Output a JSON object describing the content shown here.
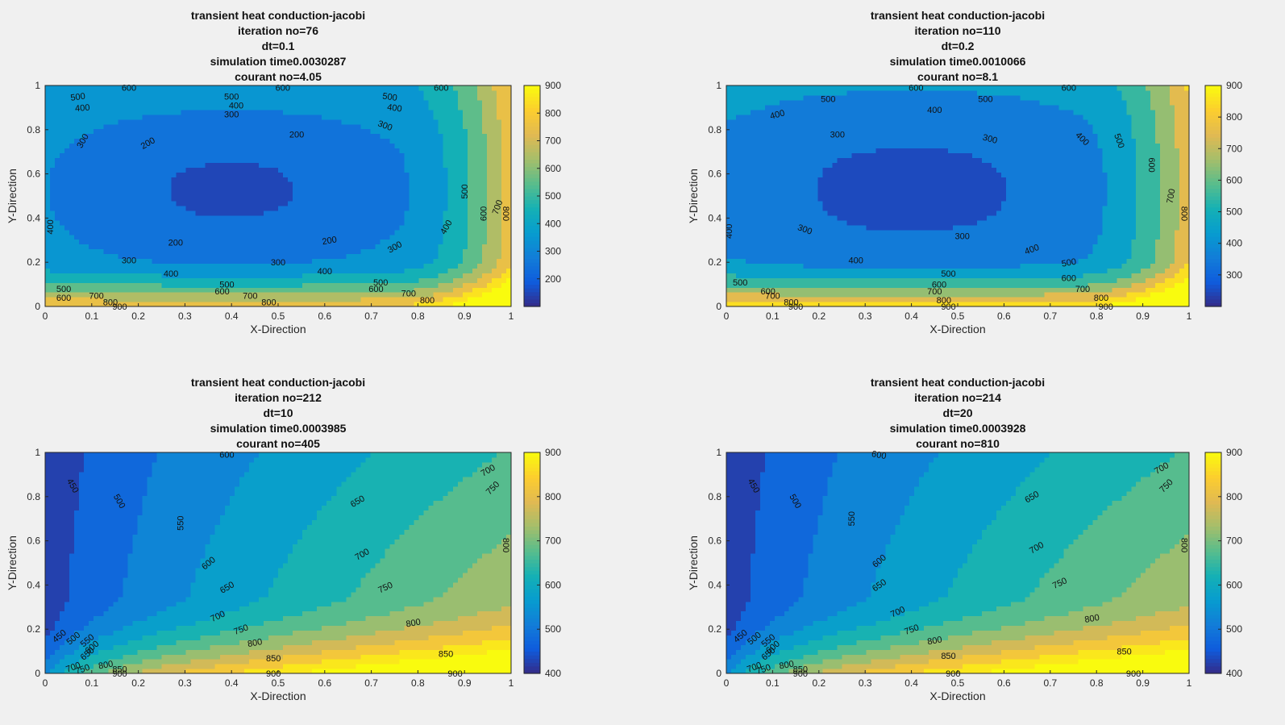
{
  "chart_data": [
    {
      "type": "contour",
      "title_lines": [
        "transient heat conduction-jacobi",
        "iteration no=76",
        "dt=0.1",
        "simulation time0.0030287",
        "courant no=4.05"
      ],
      "xlabel": "X-Direction",
      "ylabel": "Y-Direction",
      "xlim": [
        0,
        1
      ],
      "ylim": [
        0,
        1
      ],
      "xticks": [
        "0",
        "0.1",
        "0.2",
        "0.3",
        "0.4",
        "0.5",
        "0.6",
        "0.7",
        "0.8",
        "0.9",
        "1"
      ],
      "yticks": [
        "0",
        "0.2",
        "0.4",
        "0.6",
        "0.8",
        "1"
      ],
      "colorbar": {
        "ticks": [
          "200",
          "300",
          "400",
          "500",
          "600",
          "700",
          "800",
          "900"
        ],
        "tick_values": [
          200,
          300,
          400,
          500,
          600,
          700,
          800,
          900
        ],
        "range": [
          100,
          900
        ],
        "colormap": "parula"
      },
      "contour_levels": [
        200,
        300,
        400,
        500,
        600,
        700,
        800,
        900
      ],
      "contour_labels": [
        {
          "text": "600",
          "x": 0.18,
          "y": 0.99,
          "rot": 0
        },
        {
          "text": "600",
          "x": 0.51,
          "y": 0.99,
          "rot": 0
        },
        {
          "text": "600",
          "x": 0.85,
          "y": 0.99,
          "rot": 0
        },
        {
          "text": "500",
          "x": 0.07,
          "y": 0.95,
          "rot": -8
        },
        {
          "text": "500",
          "x": 0.4,
          "y": 0.95,
          "rot": 0
        },
        {
          "text": "500",
          "x": 0.74,
          "y": 0.95,
          "rot": 8
        },
        {
          "text": "400",
          "x": 0.08,
          "y": 0.9,
          "rot": -5
        },
        {
          "text": "400",
          "x": 0.41,
          "y": 0.91,
          "rot": 0
        },
        {
          "text": "400",
          "x": 0.75,
          "y": 0.9,
          "rot": 8
        },
        {
          "text": "300",
          "x": 0.4,
          "y": 0.87,
          "rot": 0
        },
        {
          "text": "300",
          "x": 0.73,
          "y": 0.82,
          "rot": 20
        },
        {
          "text": "300",
          "x": 0.08,
          "y": 0.75,
          "rot": -60
        },
        {
          "text": "200",
          "x": 0.22,
          "y": 0.74,
          "rot": -30
        },
        {
          "text": "200",
          "x": 0.54,
          "y": 0.78,
          "rot": 0
        },
        {
          "text": "500",
          "x": 0.9,
          "y": 0.52,
          "rot": -90
        },
        {
          "text": "600",
          "x": 0.94,
          "y": 0.42,
          "rot": -90
        },
        {
          "text": "700",
          "x": 0.97,
          "y": 0.45,
          "rot": -70
        },
        {
          "text": "800",
          "x": 0.99,
          "y": 0.42,
          "rot": 90
        },
        {
          "text": "400",
          "x": 0.01,
          "y": 0.36,
          "rot": -90
        },
        {
          "text": "400",
          "x": 0.86,
          "y": 0.36,
          "rot": -60
        },
        {
          "text": "200",
          "x": 0.28,
          "y": 0.29,
          "rot": 0
        },
        {
          "text": "200",
          "x": 0.61,
          "y": 0.3,
          "rot": -10
        },
        {
          "text": "300",
          "x": 0.75,
          "y": 0.27,
          "rot": -30
        },
        {
          "text": "300",
          "x": 0.18,
          "y": 0.21,
          "rot": 0
        },
        {
          "text": "300",
          "x": 0.5,
          "y": 0.2,
          "rot": 0
        },
        {
          "text": "400",
          "x": 0.27,
          "y": 0.15,
          "rot": 0
        },
        {
          "text": "400",
          "x": 0.6,
          "y": 0.16,
          "rot": 0
        },
        {
          "text": "500",
          "x": 0.72,
          "y": 0.11,
          "rot": 0
        },
        {
          "text": "600",
          "x": 0.71,
          "y": 0.08,
          "rot": 0
        },
        {
          "text": "500",
          "x": 0.39,
          "y": 0.1,
          "rot": 0
        },
        {
          "text": "600",
          "x": 0.38,
          "y": 0.07,
          "rot": 0
        },
        {
          "text": "700",
          "x": 0.44,
          "y": 0.05,
          "rot": 0
        },
        {
          "text": "700",
          "x": 0.78,
          "y": 0.06,
          "rot": 0
        },
        {
          "text": "800",
          "x": 0.48,
          "y": 0.02,
          "rot": 0
        },
        {
          "text": "800",
          "x": 0.82,
          "y": 0.03,
          "rot": 0
        },
        {
          "text": "900",
          "x": 0.16,
          "y": 0.0,
          "rot": 0
        },
        {
          "text": "700",
          "x": 0.11,
          "y": 0.05,
          "rot": 0
        },
        {
          "text": "800",
          "x": 0.14,
          "y": 0.02,
          "rot": 0
        },
        {
          "text": "500",
          "x": 0.04,
          "y": 0.08,
          "rot": 0
        },
        {
          "text": "600",
          "x": 0.04,
          "y": 0.04,
          "rot": 0
        }
      ]
    },
    {
      "type": "contour",
      "title_lines": [
        "transient heat conduction-jacobi",
        "iteration no=110",
        "dt=0.2",
        "simulation time0.0010066",
        "courant no=8.1"
      ],
      "xlabel": "X-Direction",
      "ylabel": "Y-Direction",
      "xlim": [
        0,
        1
      ],
      "ylim": [
        0,
        1
      ],
      "xticks": [
        "0",
        "0.1",
        "0.2",
        "0.3",
        "0.4",
        "0.5",
        "0.6",
        "0.7",
        "0.8",
        "0.9",
        "1"
      ],
      "yticks": [
        "0",
        "0.2",
        "0.4",
        "0.6",
        "0.8",
        "1"
      ],
      "colorbar": {
        "ticks": [
          "300",
          "400",
          "500",
          "600",
          "700",
          "800",
          "900"
        ],
        "tick_values": [
          300,
          400,
          500,
          600,
          700,
          800,
          900
        ],
        "range": [
          200,
          900
        ],
        "colormap": "parula"
      },
      "contour_levels": [
        300,
        400,
        500,
        600,
        700,
        800,
        900
      ],
      "contour_labels": [
        {
          "text": "600",
          "x": 0.41,
          "y": 0.99,
          "rot": 0
        },
        {
          "text": "600",
          "x": 0.74,
          "y": 0.99,
          "rot": 0
        },
        {
          "text": "500",
          "x": 0.22,
          "y": 0.94,
          "rot": 0
        },
        {
          "text": "500",
          "x": 0.56,
          "y": 0.94,
          "rot": 0
        },
        {
          "text": "400",
          "x": 0.11,
          "y": 0.87,
          "rot": -15
        },
        {
          "text": "400",
          "x": 0.45,
          "y": 0.89,
          "rot": 0
        },
        {
          "text": "300",
          "x": 0.24,
          "y": 0.78,
          "rot": 0
        },
        {
          "text": "300",
          "x": 0.57,
          "y": 0.76,
          "rot": 15
        },
        {
          "text": "400",
          "x": 0.77,
          "y": 0.76,
          "rot": 45
        },
        {
          "text": "500",
          "x": 0.85,
          "y": 0.75,
          "rot": 70
        },
        {
          "text": "600",
          "x": 0.92,
          "y": 0.64,
          "rot": 90
        },
        {
          "text": "700",
          "x": 0.96,
          "y": 0.5,
          "rot": -80
        },
        {
          "text": "800",
          "x": 0.99,
          "y": 0.42,
          "rot": 90
        },
        {
          "text": "400",
          "x": 0.005,
          "y": 0.34,
          "rot": -90
        },
        {
          "text": "300",
          "x": 0.17,
          "y": 0.35,
          "rot": 20
        },
        {
          "text": "300",
          "x": 0.51,
          "y": 0.32,
          "rot": 0
        },
        {
          "text": "400",
          "x": 0.66,
          "y": 0.26,
          "rot": -20
        },
        {
          "text": "400",
          "x": 0.28,
          "y": 0.21,
          "rot": 0
        },
        {
          "text": "500",
          "x": 0.74,
          "y": 0.2,
          "rot": -10
        },
        {
          "text": "500",
          "x": 0.48,
          "y": 0.15,
          "rot": 0
        },
        {
          "text": "600",
          "x": 0.74,
          "y": 0.13,
          "rot": 0
        },
        {
          "text": "600",
          "x": 0.46,
          "y": 0.1,
          "rot": 0
        },
        {
          "text": "700",
          "x": 0.77,
          "y": 0.08,
          "rot": 0
        },
        {
          "text": "700",
          "x": 0.45,
          "y": 0.07,
          "rot": 0
        },
        {
          "text": "800",
          "x": 0.81,
          "y": 0.04,
          "rot": 0
        },
        {
          "text": "800",
          "x": 0.47,
          "y": 0.03,
          "rot": 0
        },
        {
          "text": "900",
          "x": 0.82,
          "y": 0.0,
          "rot": 0
        },
        {
          "text": "900",
          "x": 0.48,
          "y": 0.0,
          "rot": 0
        },
        {
          "text": "500",
          "x": 0.03,
          "y": 0.11,
          "rot": 0
        },
        {
          "text": "600",
          "x": 0.09,
          "y": 0.07,
          "rot": 0
        },
        {
          "text": "700",
          "x": 0.1,
          "y": 0.05,
          "rot": 0
        },
        {
          "text": "800",
          "x": 0.14,
          "y": 0.02,
          "rot": 0
        },
        {
          "text": "900",
          "x": 0.15,
          "y": 0.0,
          "rot": 0
        }
      ]
    },
    {
      "type": "contour",
      "title_lines": [
        "transient heat conduction-jacobi",
        "iteration no=212",
        "dt=10",
        "simulation time0.0003985",
        "courant no=405"
      ],
      "xlabel": "X-Direction",
      "ylabel": "Y-Direction",
      "xlim": [
        0,
        1
      ],
      "ylim": [
        0,
        1
      ],
      "xticks": [
        "0",
        "0.1",
        "0.2",
        "0.3",
        "0.4",
        "0.5",
        "0.6",
        "0.7",
        "0.8",
        "0.9",
        "1"
      ],
      "yticks": [
        "0",
        "0.2",
        "0.4",
        "0.6",
        "0.8",
        "1"
      ],
      "colorbar": {
        "ticks": [
          "400",
          "500",
          "600",
          "700",
          "800",
          "900"
        ],
        "tick_values": [
          400,
          500,
          600,
          700,
          800,
          900
        ],
        "range": [
          400,
          900
        ],
        "colormap": "parula"
      },
      "contour_levels": [
        450,
        500,
        550,
        600,
        650,
        700,
        750,
        800,
        850,
        900
      ],
      "contour_labels": [
        {
          "text": "600",
          "x": 0.39,
          "y": 0.99,
          "rot": 0
        },
        {
          "text": "450",
          "x": 0.06,
          "y": 0.85,
          "rot": 60
        },
        {
          "text": "500",
          "x": 0.16,
          "y": 0.78,
          "rot": 60
        },
        {
          "text": "550",
          "x": 0.29,
          "y": 0.68,
          "rot": -90
        },
        {
          "text": "600",
          "x": 0.35,
          "y": 0.5,
          "rot": -40
        },
        {
          "text": "650",
          "x": 0.39,
          "y": 0.39,
          "rot": -30
        },
        {
          "text": "700",
          "x": 0.37,
          "y": 0.26,
          "rot": -25
        },
        {
          "text": "750",
          "x": 0.42,
          "y": 0.2,
          "rot": -20
        },
        {
          "text": "800",
          "x": 0.45,
          "y": 0.14,
          "rot": -10
        },
        {
          "text": "850",
          "x": 0.49,
          "y": 0.07,
          "rot": 0
        },
        {
          "text": "900",
          "x": 0.49,
          "y": 0.0,
          "rot": 0
        },
        {
          "text": "650",
          "x": 0.67,
          "y": 0.78,
          "rot": -30
        },
        {
          "text": "700",
          "x": 0.68,
          "y": 0.54,
          "rot": -30
        },
        {
          "text": "750",
          "x": 0.73,
          "y": 0.39,
          "rot": -25
        },
        {
          "text": "800",
          "x": 0.79,
          "y": 0.23,
          "rot": -10
        },
        {
          "text": "850",
          "x": 0.86,
          "y": 0.09,
          "rot": 0
        },
        {
          "text": "900",
          "x": 0.88,
          "y": 0.0,
          "rot": 0
        },
        {
          "text": "700",
          "x": 0.95,
          "y": 0.92,
          "rot": -30
        },
        {
          "text": "750",
          "x": 0.96,
          "y": 0.84,
          "rot": -45
        },
        {
          "text": "800",
          "x": 0.99,
          "y": 0.58,
          "rot": 90
        },
        {
          "text": "450",
          "x": 0.03,
          "y": 0.17,
          "rot": -40
        },
        {
          "text": "500",
          "x": 0.06,
          "y": 0.16,
          "rot": -40
        },
        {
          "text": "550",
          "x": 0.09,
          "y": 0.15,
          "rot": -40
        },
        {
          "text": "600",
          "x": 0.1,
          "y": 0.12,
          "rot": -40
        },
        {
          "text": "650",
          "x": 0.09,
          "y": 0.09,
          "rot": -40
        },
        {
          "text": "700",
          "x": 0.06,
          "y": 0.03,
          "rot": -20
        },
        {
          "text": "750",
          "x": 0.08,
          "y": 0.02,
          "rot": -20
        },
        {
          "text": "800",
          "x": 0.13,
          "y": 0.04,
          "rot": -10
        },
        {
          "text": "850",
          "x": 0.16,
          "y": 0.02,
          "rot": 0
        },
        {
          "text": "900",
          "x": 0.16,
          "y": 0.0,
          "rot": 0
        }
      ]
    },
    {
      "type": "contour",
      "title_lines": [
        "transient heat conduction-jacobi",
        "iteration no=214",
        "dt=20",
        "simulation time0.0003928",
        "courant no=810"
      ],
      "xlabel": "X-Direction",
      "ylabel": "Y-Direction",
      "xlim": [
        0,
        1
      ],
      "ylim": [
        0,
        1
      ],
      "xticks": [
        "0",
        "0.1",
        "0.2",
        "0.3",
        "0.4",
        "0.5",
        "0.6",
        "0.7",
        "0.8",
        "0.9",
        "1"
      ],
      "yticks": [
        "0",
        "0.2",
        "0.4",
        "0.6",
        "0.8",
        "1"
      ],
      "colorbar": {
        "ticks": [
          "400",
          "500",
          "600",
          "700",
          "800",
          "900"
        ],
        "tick_values": [
          400,
          500,
          600,
          700,
          800,
          900
        ],
        "range": [
          400,
          900
        ],
        "colormap": "parula"
      },
      "contour_levels": [
        450,
        500,
        550,
        600,
        650,
        700,
        750,
        800,
        850,
        900
      ],
      "contour_labels": [
        {
          "text": "600",
          "x": 0.33,
          "y": 0.99,
          "rot": 10
        },
        {
          "text": "450",
          "x": 0.06,
          "y": 0.85,
          "rot": 60
        },
        {
          "text": "500",
          "x": 0.15,
          "y": 0.78,
          "rot": 60
        },
        {
          "text": "550",
          "x": 0.27,
          "y": 0.7,
          "rot": -90
        },
        {
          "text": "600",
          "x": 0.33,
          "y": 0.51,
          "rot": -40
        },
        {
          "text": "650",
          "x": 0.33,
          "y": 0.4,
          "rot": -35
        },
        {
          "text": "700",
          "x": 0.37,
          "y": 0.28,
          "rot": -25
        },
        {
          "text": "750",
          "x": 0.4,
          "y": 0.2,
          "rot": -20
        },
        {
          "text": "800",
          "x": 0.45,
          "y": 0.15,
          "rot": -10
        },
        {
          "text": "850",
          "x": 0.48,
          "y": 0.08,
          "rot": 0
        },
        {
          "text": "900",
          "x": 0.49,
          "y": 0.0,
          "rot": 0
        },
        {
          "text": "650",
          "x": 0.66,
          "y": 0.8,
          "rot": -30
        },
        {
          "text": "700",
          "x": 0.67,
          "y": 0.57,
          "rot": -30
        },
        {
          "text": "750",
          "x": 0.72,
          "y": 0.41,
          "rot": -25
        },
        {
          "text": "800",
          "x": 0.79,
          "y": 0.25,
          "rot": -10
        },
        {
          "text": "850",
          "x": 0.86,
          "y": 0.1,
          "rot": 0
        },
        {
          "text": "900",
          "x": 0.88,
          "y": 0.0,
          "rot": 0
        },
        {
          "text": "700",
          "x": 0.94,
          "y": 0.93,
          "rot": -30
        },
        {
          "text": "750",
          "x": 0.95,
          "y": 0.85,
          "rot": -45
        },
        {
          "text": "800",
          "x": 0.99,
          "y": 0.58,
          "rot": 90
        },
        {
          "text": "450",
          "x": 0.03,
          "y": 0.17,
          "rot": -40
        },
        {
          "text": "500",
          "x": 0.06,
          "y": 0.16,
          "rot": -40
        },
        {
          "text": "550",
          "x": 0.09,
          "y": 0.15,
          "rot": -40
        },
        {
          "text": "600",
          "x": 0.1,
          "y": 0.12,
          "rot": -40
        },
        {
          "text": "650",
          "x": 0.09,
          "y": 0.09,
          "rot": -40
        },
        {
          "text": "700",
          "x": 0.06,
          "y": 0.03,
          "rot": -20
        },
        {
          "text": "750",
          "x": 0.08,
          "y": 0.02,
          "rot": -20
        },
        {
          "text": "800",
          "x": 0.13,
          "y": 0.04,
          "rot": -10
        },
        {
          "text": "850",
          "x": 0.16,
          "y": 0.02,
          "rot": 0
        },
        {
          "text": "900",
          "x": 0.16,
          "y": 0.0,
          "rot": 0
        }
      ]
    }
  ]
}
